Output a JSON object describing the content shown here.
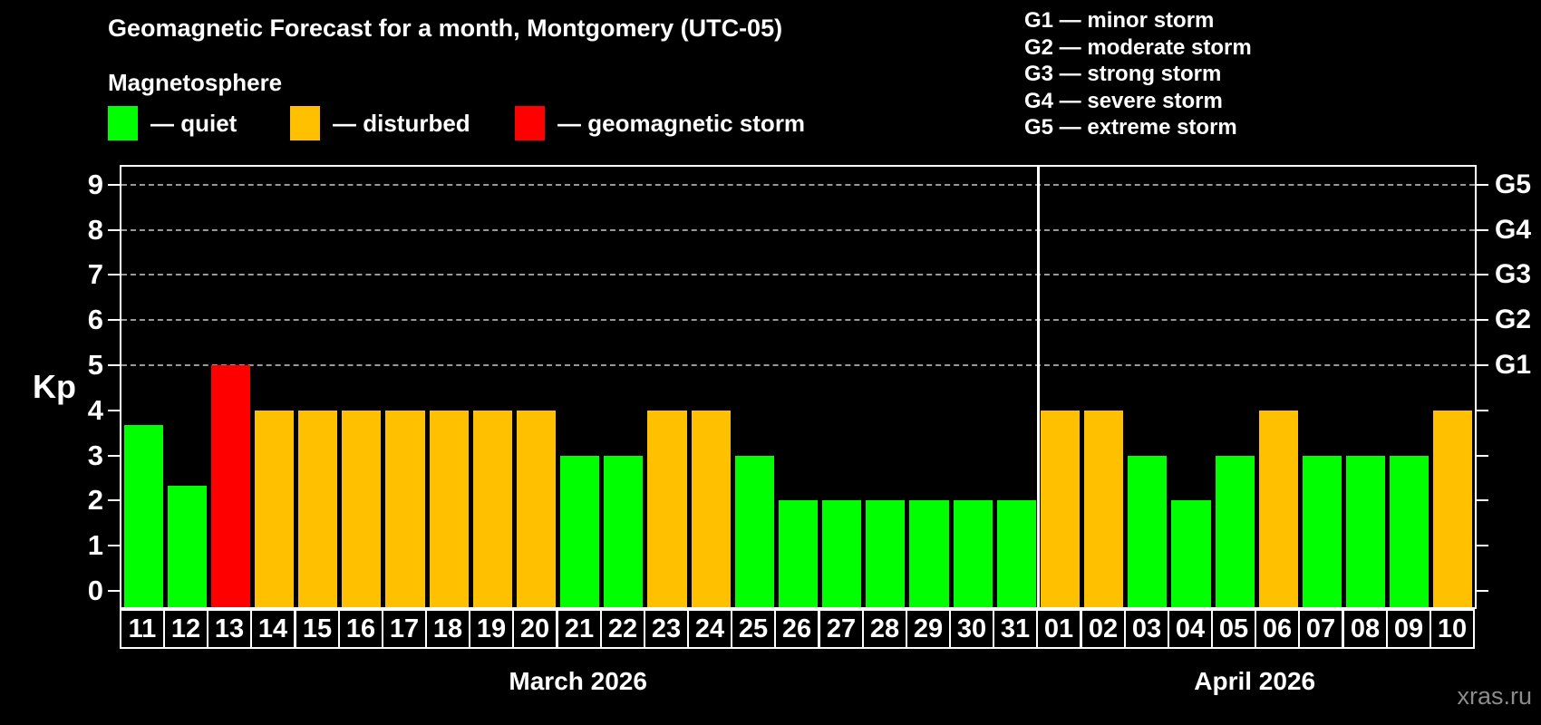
{
  "title": "Geomagnetic Forecast for a month, Montgomery (UTC-05)",
  "magnetosphere_label": "Magnetosphere",
  "legend": {
    "items": [
      {
        "label": "— quiet",
        "state": "quiet"
      },
      {
        "label": "— disturbed",
        "state": "disturbed"
      },
      {
        "label": "— geomagnetic storm",
        "state": "storm"
      }
    ]
  },
  "g_legend": [
    "G1 — minor storm",
    "G2 — moderate storm",
    "G3 — strong storm",
    "G4 — severe storm",
    "G5 — extreme storm"
  ],
  "y_axis": {
    "label": "Kp",
    "ticks": [
      0,
      1,
      2,
      3,
      4,
      5,
      6,
      7,
      8,
      9
    ]
  },
  "right_axis": {
    "ticks": [
      {
        "label": "G1",
        "value": 5
      },
      {
        "label": "G2",
        "value": 6
      },
      {
        "label": "G3",
        "value": 7
      },
      {
        "label": "G4",
        "value": 8
      },
      {
        "label": "G5",
        "value": 9
      }
    ]
  },
  "colors": {
    "quiet": "#00ff00",
    "disturbed": "#ffc000",
    "storm": "#ff0000",
    "background": "#000000",
    "axis": "#ffffff",
    "gridline": "#b4b4b4",
    "watermark": "#8c8c8c"
  },
  "months": [
    {
      "label": "March 2026",
      "days": [
        {
          "day": "11",
          "kp": 3.67,
          "state": "quiet"
        },
        {
          "day": "12",
          "kp": 2.33,
          "state": "quiet"
        },
        {
          "day": "13",
          "kp": 5,
          "state": "storm"
        },
        {
          "day": "14",
          "kp": 4,
          "state": "disturbed"
        },
        {
          "day": "15",
          "kp": 4,
          "state": "disturbed"
        },
        {
          "day": "16",
          "kp": 4,
          "state": "disturbed"
        },
        {
          "day": "17",
          "kp": 4,
          "state": "disturbed"
        },
        {
          "day": "18",
          "kp": 4,
          "state": "disturbed"
        },
        {
          "day": "19",
          "kp": 4,
          "state": "disturbed"
        },
        {
          "day": "20",
          "kp": 4,
          "state": "disturbed"
        },
        {
          "day": "21",
          "kp": 3,
          "state": "quiet"
        },
        {
          "day": "22",
          "kp": 3,
          "state": "quiet"
        },
        {
          "day": "23",
          "kp": 4,
          "state": "disturbed"
        },
        {
          "day": "24",
          "kp": 4,
          "state": "disturbed"
        },
        {
          "day": "25",
          "kp": 3,
          "state": "quiet"
        },
        {
          "day": "26",
          "kp": 2,
          "state": "quiet"
        },
        {
          "day": "27",
          "kp": 2,
          "state": "quiet"
        },
        {
          "day": "28",
          "kp": 2,
          "state": "quiet"
        },
        {
          "day": "29",
          "kp": 2,
          "state": "quiet"
        },
        {
          "day": "30",
          "kp": 2,
          "state": "quiet"
        },
        {
          "day": "31",
          "kp": 2,
          "state": "quiet"
        }
      ]
    },
    {
      "label": "April 2026",
      "days": [
        {
          "day": "01",
          "kp": 4,
          "state": "disturbed"
        },
        {
          "day": "02",
          "kp": 4,
          "state": "disturbed"
        },
        {
          "day": "03",
          "kp": 3,
          "state": "quiet"
        },
        {
          "day": "04",
          "kp": 2,
          "state": "quiet"
        },
        {
          "day": "05",
          "kp": 3,
          "state": "quiet"
        },
        {
          "day": "06",
          "kp": 4,
          "state": "disturbed"
        },
        {
          "day": "07",
          "kp": 3,
          "state": "quiet"
        },
        {
          "day": "08",
          "kp": 3,
          "state": "quiet"
        },
        {
          "day": "09",
          "kp": 3,
          "state": "quiet"
        },
        {
          "day": "10",
          "kp": 4,
          "state": "disturbed"
        }
      ]
    }
  ],
  "watermark": "xras.ru",
  "chart_data": {
    "type": "bar",
    "title": "Geomagnetic Forecast for a month, Montgomery (UTC-05)",
    "subtitle": "Magnetosphere",
    "xlabel": "",
    "ylabel": "Kp",
    "ylim": [
      0,
      9
    ],
    "grid": "dashed horizontal lines at Kp 5-9 only",
    "gridlines": [
      5,
      6,
      7,
      8,
      9
    ],
    "legend_position": "top",
    "legend": [
      "quiet (green)",
      "disturbed (orange)",
      "geomagnetic storm (red)"
    ],
    "right_axis_labels": {
      "G1": 5,
      "G2": 6,
      "G3": 7,
      "G4": 8,
      "G5": 9
    },
    "categories": [
      "Mar 11",
      "Mar 12",
      "Mar 13",
      "Mar 14",
      "Mar 15",
      "Mar 16",
      "Mar 17",
      "Mar 18",
      "Mar 19",
      "Mar 20",
      "Mar 21",
      "Mar 22",
      "Mar 23",
      "Mar 24",
      "Mar 25",
      "Mar 26",
      "Mar 27",
      "Mar 28",
      "Mar 29",
      "Mar 30",
      "Mar 31",
      "Apr 01",
      "Apr 02",
      "Apr 03",
      "Apr 04",
      "Apr 05",
      "Apr 06",
      "Apr 07",
      "Apr 08",
      "Apr 09",
      "Apr 10"
    ],
    "values": [
      3.67,
      2.33,
      5,
      4,
      4,
      4,
      4,
      4,
      4,
      4,
      3,
      3,
      4,
      4,
      3,
      2,
      2,
      2,
      2,
      2,
      2,
      4,
      4,
      3,
      2,
      3,
      4,
      3,
      3,
      3,
      4
    ],
    "bar_states": [
      "quiet",
      "quiet",
      "storm",
      "disturbed",
      "disturbed",
      "disturbed",
      "disturbed",
      "disturbed",
      "disturbed",
      "disturbed",
      "quiet",
      "quiet",
      "disturbed",
      "disturbed",
      "quiet",
      "quiet",
      "quiet",
      "quiet",
      "quiet",
      "quiet",
      "quiet",
      "disturbed",
      "disturbed",
      "quiet",
      "quiet",
      "quiet",
      "disturbed",
      "quiet",
      "quiet",
      "quiet",
      "disturbed"
    ],
    "annotations": [
      "month separator line between Mar 31 and Apr 01",
      "watermark xras.ru bottom right"
    ]
  }
}
